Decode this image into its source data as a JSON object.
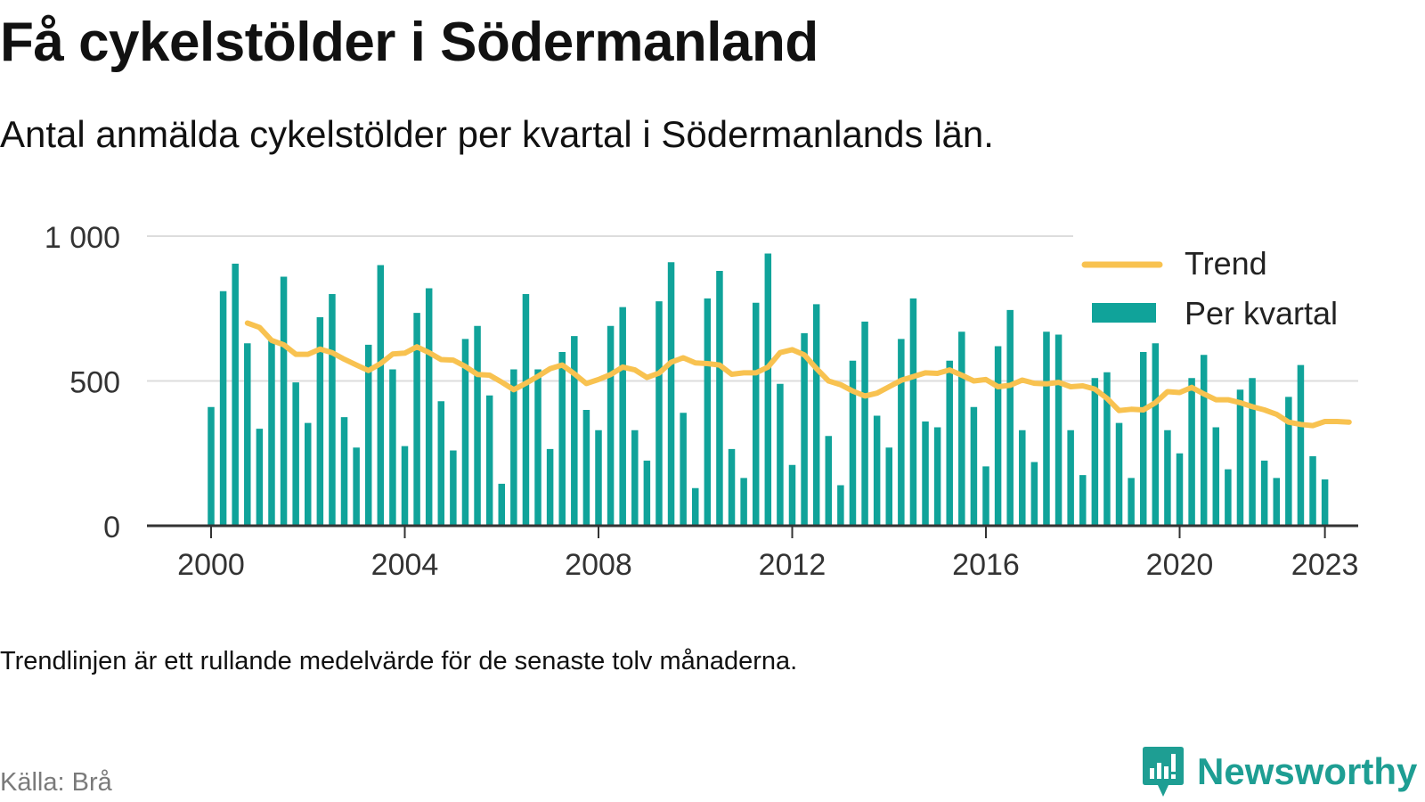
{
  "title": "Få cykelstölder i Södermanland",
  "subtitle": "Antal anmälda cykelstölder per kvartal i Södermanlands län.",
  "footnote": "Trendlinjen är ett rullande medelvärde för de senaste tolv månaderna.",
  "source": "Källa: Brå",
  "brand": {
    "name": "Newsworthy",
    "icon": "newsworthy-logo-icon"
  },
  "colors": {
    "bars": "#10a39a",
    "trend": "#f8c250",
    "grid": "#dddddd",
    "axis": "#333333"
  },
  "chart_data": {
    "type": "bar",
    "title": "",
    "xlabel": "",
    "ylabel": "",
    "ylim": [
      0,
      1000
    ],
    "yticks": [
      0,
      500,
      1000
    ],
    "ytick_labels": [
      "0",
      "500",
      "1 000"
    ],
    "xtick_years": [
      2000,
      2004,
      2008,
      2012,
      2016,
      2020,
      2023
    ],
    "xtick_labels": [
      "2000",
      "2004",
      "2008",
      "2012",
      "2016",
      "2020",
      "2023"
    ],
    "grid": true,
    "legend_position": "top-right",
    "start_year": 2000,
    "x_unit": "quarter",
    "series": [
      {
        "name": "Per kvartal",
        "type": "bar",
        "values": [
          410,
          810,
          905,
          630,
          335,
          640,
          860,
          495,
          355,
          720,
          800,
          375,
          270,
          625,
          900,
          540,
          275,
          735,
          820,
          430,
          260,
          645,
          690,
          450,
          145,
          540,
          800,
          540,
          265,
          600,
          655,
          400,
          330,
          690,
          755,
          330,
          225,
          775,
          910,
          390,
          130,
          785,
          880,
          265,
          165,
          770,
          940,
          490,
          210,
          665,
          765,
          310,
          140,
          570,
          705,
          380,
          270,
          645,
          785,
          360,
          340,
          570,
          670,
          410,
          205,
          620,
          745,
          330,
          220,
          670,
          660,
          330,
          175,
          510,
          530,
          355,
          165,
          600,
          630,
          330,
          250,
          510,
          590,
          340,
          195,
          470,
          510,
          225,
          165,
          445,
          555,
          240,
          160
        ]
      },
      {
        "name": "Trend",
        "type": "line",
        "start_index": 3,
        "values": [
          700,
          685,
          640,
          625,
          592,
          592,
          610,
          598,
          575,
          555,
          536,
          560,
          593,
          596,
          618,
          598,
          574,
          572,
          550,
          522,
          520,
          496,
          470,
          492,
          516,
          542,
          555,
          525,
          491,
          505,
          522,
          548,
          538,
          512,
          527,
          565,
          580,
          562,
          560,
          555,
          523,
          528,
          528,
          548,
          598,
          608,
          590,
          543,
          500,
          487,
          465,
          448,
          458,
          480,
          502,
          515,
          528,
          526,
          538,
          520,
          500,
          505,
          480,
          485,
          503,
          492,
          490,
          495,
          480,
          483,
          472,
          440,
          398,
          402,
          400,
          425,
          463,
          460,
          478,
          455,
          435,
          435,
          425,
          411,
          400,
          385,
          358,
          350,
          346,
          360,
          360,
          358
        ]
      }
    ]
  }
}
